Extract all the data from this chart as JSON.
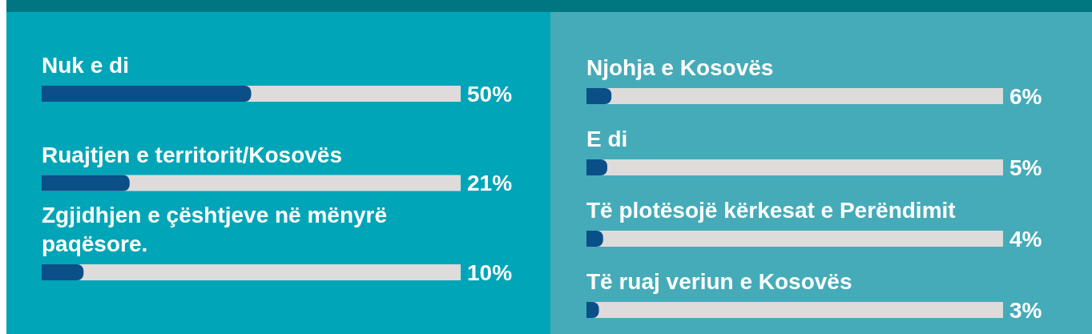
{
  "chart_data": [
    {
      "type": "bar",
      "orientation": "horizontal",
      "categories": [
        "Nuk e di",
        "Ruajtjen e territorit/Kosovës",
        "Zgjidhjen e çështjeve në mënyrë paqësore."
      ],
      "values": [
        50,
        21,
        10
      ],
      "value_labels": [
        "50%",
        "21%",
        "10%"
      ],
      "color": "#0b4f88",
      "xlim": [
        0,
        100
      ],
      "tick_labels": "y"
    },
    {
      "type": "bar",
      "orientation": "horizontal",
      "categories": [
        "Njohja e Kosovës",
        "E di",
        "Të plotësojë kërkesat e Perëndimit",
        "Të ruaj veriun e Kosovës"
      ],
      "values": [
        6,
        5,
        4,
        3
      ],
      "value_labels": [
        "6%",
        "5%",
        "4%",
        "3%"
      ],
      "color": "#0b4f88",
      "xlim": [
        0,
        100
      ],
      "tick_labels": "y"
    }
  ]
}
